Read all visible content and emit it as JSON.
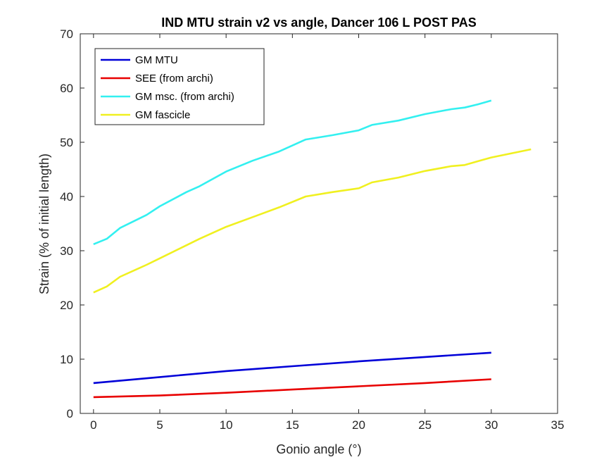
{
  "chart_data": {
    "type": "line",
    "title": "IND MTU strain v2 vs angle, Dancer 106 L POST PAS",
    "xlabel": "Gonio angle (°)",
    "ylabel": "Strain (% of initial length)",
    "xlim": [
      -1,
      35
    ],
    "ylim": [
      0,
      70
    ],
    "xticks": [
      0,
      5,
      10,
      15,
      20,
      25,
      30,
      35
    ],
    "yticks": [
      0,
      10,
      20,
      30,
      40,
      50,
      60,
      70
    ],
    "grid": false,
    "legend_position": "top-left",
    "series": [
      {
        "name": "GM MTU",
        "color": "#0000d8",
        "points": [
          [
            0,
            5.6
          ],
          [
            5,
            6.7
          ],
          [
            10,
            7.8
          ],
          [
            15,
            8.7
          ],
          [
            20,
            9.6
          ],
          [
            25,
            10.4
          ],
          [
            30,
            11.2
          ]
        ]
      },
      {
        "name": "SEE (from archi)",
        "color": "#e80000",
        "points": [
          [
            0,
            3.0
          ],
          [
            5,
            3.3
          ],
          [
            10,
            3.8
          ],
          [
            15,
            4.4
          ],
          [
            20,
            5.0
          ],
          [
            25,
            5.6
          ],
          [
            30,
            6.3
          ]
        ]
      },
      {
        "name": "GM msc. (from archi)",
        "color": "#33f0f0",
        "points": [
          [
            0,
            31.2
          ],
          [
            1,
            32.2
          ],
          [
            2,
            34.2
          ],
          [
            4,
            36.6
          ],
          [
            5,
            38.2
          ],
          [
            7,
            40.8
          ],
          [
            8,
            41.9
          ],
          [
            10,
            44.6
          ],
          [
            12,
            46.6
          ],
          [
            14,
            48.3
          ],
          [
            16,
            50.5
          ],
          [
            18,
            51.3
          ],
          [
            20,
            52.2
          ],
          [
            21,
            53.2
          ],
          [
            23,
            54.0
          ],
          [
            25,
            55.2
          ],
          [
            27,
            56.1
          ],
          [
            28,
            56.4
          ],
          [
            29,
            57.0
          ],
          [
            30,
            57.7
          ]
        ]
      },
      {
        "name": "GM fascicle",
        "color": "#f0f020",
        "points": [
          [
            0,
            22.3
          ],
          [
            1,
            23.4
          ],
          [
            2,
            25.2
          ],
          [
            4,
            27.4
          ],
          [
            5,
            28.6
          ],
          [
            7,
            31.0
          ],
          [
            8,
            32.2
          ],
          [
            10,
            34.4
          ],
          [
            12,
            36.2
          ],
          [
            14,
            38.0
          ],
          [
            16,
            40.0
          ],
          [
            18,
            40.8
          ],
          [
            20,
            41.5
          ],
          [
            21,
            42.6
          ],
          [
            23,
            43.5
          ],
          [
            25,
            44.7
          ],
          [
            27,
            45.6
          ],
          [
            28,
            45.8
          ],
          [
            29,
            46.5
          ],
          [
            30,
            47.2
          ],
          [
            32,
            48.2
          ],
          [
            33,
            48.7
          ]
        ]
      }
    ]
  }
}
